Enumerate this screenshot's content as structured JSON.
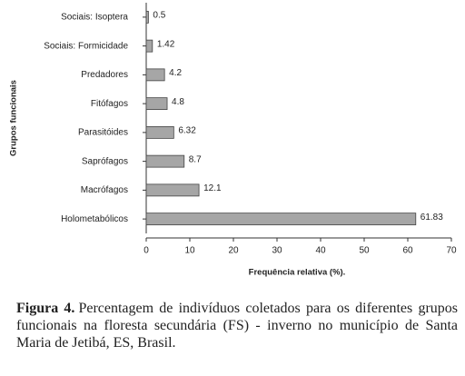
{
  "chart_data": {
    "type": "bar",
    "orientation": "horizontal",
    "categories": [
      "Sociais: Isoptera",
      "Sociais: Formicidade",
      "Predadores",
      "Fitófagos",
      "Parasitóides",
      "Saprófagos",
      "Macrófagos",
      "Holometabólicos"
    ],
    "values": [
      0.5,
      1.42,
      4.2,
      4.8,
      6.32,
      8.7,
      12.1,
      61.83
    ],
    "color": "#a6a6a6",
    "xlim": [
      0,
      70
    ],
    "xticks": [
      0,
      10,
      20,
      30,
      40,
      50,
      60,
      70
    ],
    "x_label": "Frequência relativa (%).",
    "y_label": "Grupos funcionais",
    "caption": {
      "label": "Figura 4.",
      "text": "Percentagem de indivíduos coletados para os diferentes grupos funcionais na floresta secundária (FS) - inverno no município de Santa Maria de Jetibá, ES, Brasil."
    }
  }
}
